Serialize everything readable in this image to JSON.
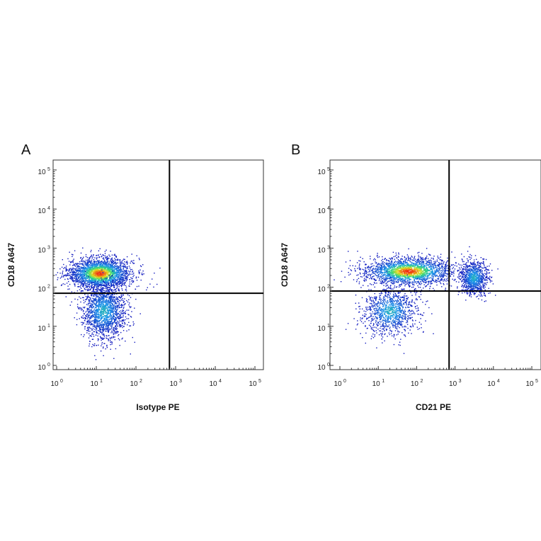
{
  "chart_data": [
    {
      "type": "scatter",
      "panel": "A",
      "xlabel": "Isotype PE",
      "ylabel": "CD18 A647",
      "xscale": "log",
      "yscale": "log",
      "xlim": [
        1,
        100000
      ],
      "ylim": [
        1,
        100000
      ],
      "x_ticks": [
        {
          "base": "10",
          "exp": "0"
        },
        {
          "base": "10",
          "exp": "1"
        },
        {
          "base": "10",
          "exp": "2"
        },
        {
          "base": "10",
          "exp": "3"
        },
        {
          "base": "10",
          "exp": "4"
        },
        {
          "base": "10",
          "exp": "5"
        }
      ],
      "y_ticks": [
        {
          "base": "10",
          "exp": "0"
        },
        {
          "base": "10",
          "exp": "1"
        },
        {
          "base": "10",
          "exp": "2"
        },
        {
          "base": "10",
          "exp": "3"
        },
        {
          "base": "10",
          "exp": "4"
        },
        {
          "base": "10",
          "exp": "5"
        }
      ],
      "gate": {
        "x": 700,
        "y": 70
      },
      "populations": [
        {
          "center_x": 12,
          "center_y": 230,
          "spread_log_x": 0.4,
          "spread_log_y": 0.2,
          "share": 0.6
        },
        {
          "center_x": 15,
          "center_y": 25,
          "spread_log_x": 0.28,
          "spread_log_y": 0.35,
          "share": 0.4
        }
      ],
      "grid": false
    },
    {
      "type": "scatter",
      "panel": "B",
      "xlabel": "CD21 PE",
      "ylabel": "CD18 A647",
      "xscale": "log",
      "yscale": "log",
      "xlim": [
        1,
        100000
      ],
      "ylim": [
        1,
        100000
      ],
      "x_ticks": [
        {
          "base": "10",
          "exp": "0"
        },
        {
          "base": "10",
          "exp": "1"
        },
        {
          "base": "10",
          "exp": "2"
        },
        {
          "base": "10",
          "exp": "3"
        },
        {
          "base": "10",
          "exp": "4"
        },
        {
          "base": "10",
          "exp": "5"
        }
      ],
      "y_ticks": [
        {
          "base": "10",
          "exp": "0"
        },
        {
          "base": "10",
          "exp": "1"
        },
        {
          "base": "10",
          "exp": "2"
        },
        {
          "base": "10",
          "exp": "3"
        },
        {
          "base": "10",
          "exp": "4"
        },
        {
          "base": "10",
          "exp": "5"
        }
      ],
      "gate": {
        "x": 700,
        "y": 80
      },
      "populations": [
        {
          "center_x": 60,
          "center_y": 260,
          "spread_log_x": 0.6,
          "spread_log_y": 0.18,
          "share": 0.52
        },
        {
          "center_x": 20,
          "center_y": 25,
          "spread_log_x": 0.35,
          "spread_log_y": 0.3,
          "share": 0.26
        },
        {
          "center_x": 3000,
          "center_y": 180,
          "spread_log_x": 0.18,
          "spread_log_y": 0.22,
          "share": 0.22
        }
      ],
      "grid": false
    }
  ],
  "colors": {
    "density_low": "#1020c8",
    "density_mid": "#20c8f0",
    "density_high": "#30e040",
    "density_peak": "#f03010",
    "gate_line": "#000000"
  }
}
